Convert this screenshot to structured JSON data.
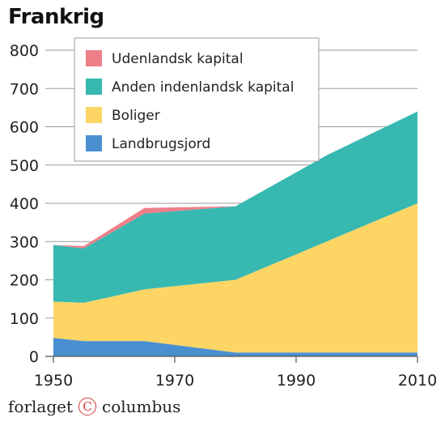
{
  "chart_data": {
    "type": "area",
    "stacked": true,
    "title": "Frankrig",
    "x": [
      1950,
      1955,
      1965,
      1980,
      1995,
      2010
    ],
    "x_ticks": [
      1950,
      1970,
      1990,
      2010
    ],
    "xlim": [
      1950,
      2010
    ],
    "y_ticks": [
      0,
      100,
      200,
      300,
      400,
      500,
      600,
      700,
      800
    ],
    "ylim": [
      0,
      800
    ],
    "grid": true,
    "legend_position": "top-left",
    "series": [
      {
        "name": "Landbrugsjord",
        "color": "#4a8fd0",
        "values": [
          48,
          40,
          40,
          10,
          10,
          10
        ]
      },
      {
        "name": "Boliger",
        "color": "#fdd565",
        "values": [
          95,
          100,
          135,
          190,
          290,
          390
        ]
      },
      {
        "name": "Anden indenlandsk kapital",
        "color": "#37b8b0",
        "values": [
          148,
          142,
          198,
          192,
          225,
          240
        ]
      },
      {
        "name": "Udenlandsk kapital",
        "color": "#ee7f88",
        "values": [
          0,
          6,
          15,
          0,
          0,
          0
        ]
      }
    ],
    "legend_order": [
      "Udenlandsk kapital",
      "Anden indenlandsk kapital",
      "Boliger",
      "Landbrugsjord"
    ]
  },
  "footer": {
    "left": "forlaget",
    "symbol": "C",
    "right": "columbus"
  }
}
